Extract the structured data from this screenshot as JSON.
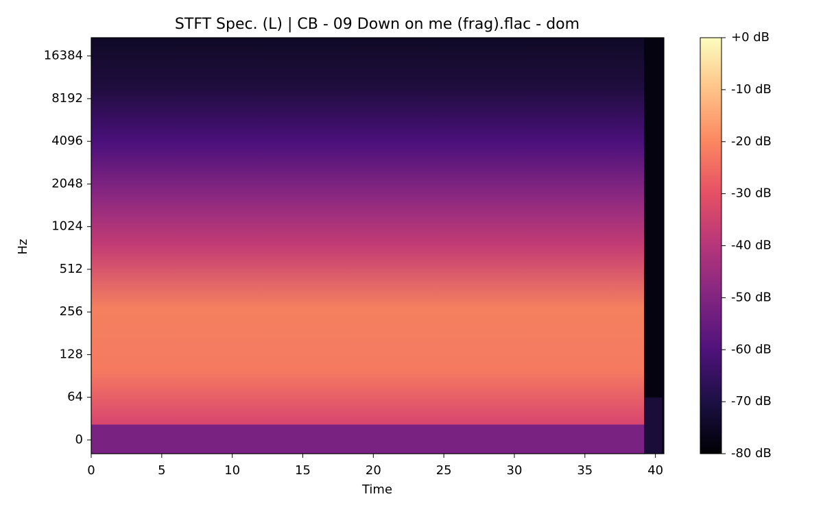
{
  "chart_data": {
    "type": "spectrogram",
    "title": "STFT Spec. (L) | CB - 09 Down on me (frag).flac - dom",
    "x_label": "Time",
    "y_label": "Hz",
    "xlim": [
      0,
      40.6
    ],
    "xticks": [
      0,
      5,
      10,
      15,
      20,
      25,
      30,
      35,
      40
    ],
    "ylim": [
      -20.6,
      22050
    ],
    "yticks": [
      0,
      64,
      128,
      256,
      512,
      1024,
      2048,
      4096,
      8192,
      16384
    ],
    "colorbar": {
      "clim": [
        -80,
        0
      ],
      "ticks": [
        {
          "value": 0,
          "label": "+0 dB"
        },
        {
          "value": -10,
          "label": "-10 dB"
        },
        {
          "value": -20,
          "label": "-20 dB"
        },
        {
          "value": -30,
          "label": "-30 dB"
        },
        {
          "value": -40,
          "label": "-40 dB"
        },
        {
          "value": -50,
          "label": "-50 dB"
        },
        {
          "value": -60,
          "label": "-60 dB"
        },
        {
          "value": -70,
          "label": "-70 dB"
        },
        {
          "value": -80,
          "label": "-80 dB"
        }
      ],
      "colormap": [
        "#000004",
        "#1c1044",
        "#4f127b",
        "#812581",
        "#b5367a",
        "#e55064",
        "#fb8761",
        "#fec287",
        "#fcfdbf"
      ]
    }
  }
}
